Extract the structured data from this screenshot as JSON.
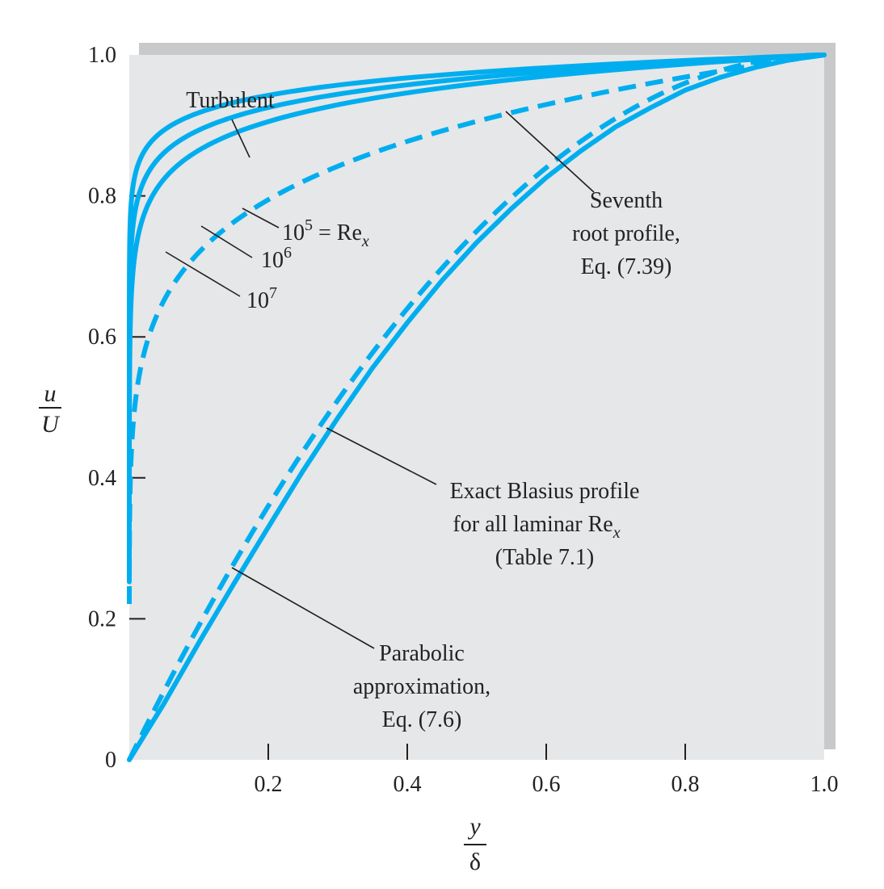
{
  "chart_data": {
    "type": "line",
    "x_axis": {
      "label_numerator": "y",
      "label_denominator": "δ",
      "range": [
        0,
        1.0
      ],
      "ticks": [
        0.2,
        0.4,
        0.6,
        0.8,
        1.0
      ],
      "tick_labels": [
        "0.2",
        "0.4",
        "0.6",
        "0.8",
        "1.0"
      ]
    },
    "y_axis": {
      "label_numerator": "u",
      "label_denominator": "U",
      "range": [
        0,
        1.0
      ],
      "ticks": [
        0,
        0.2,
        0.4,
        0.6,
        0.8,
        1.0
      ],
      "tick_labels": [
        "0",
        "0.2",
        "0.4",
        "0.6",
        "0.8",
        "1.0"
      ]
    },
    "grid": false,
    "colors": {
      "curve": "#00AEEF",
      "background_panel": "#E6E7E8",
      "panel_shadow": "#C8C9CB",
      "leader": "#231F20"
    },
    "series": [
      {
        "id": "turbulent-re-1e7",
        "style": "solid",
        "kind": "turbulent_log",
        "param": 0.0146
      },
      {
        "id": "turbulent-re-1e6",
        "style": "solid",
        "kind": "turbulent_log",
        "param": 0.019
      },
      {
        "id": "turbulent-re-1e5",
        "style": "solid",
        "kind": "turbulent_log",
        "param": 0.0241
      },
      {
        "id": "seventh-root",
        "style": "dashed",
        "kind": "seventh_root"
      },
      {
        "id": "parabolic-approximation",
        "style": "dashed",
        "kind": "parabolic"
      },
      {
        "id": "exact-blasius",
        "style": "solid",
        "kind": "blasius",
        "x": [
          0,
          0.05,
          0.1,
          0.15,
          0.2,
          0.25,
          0.3,
          0.35,
          0.4,
          0.45,
          0.5,
          0.55,
          0.6,
          0.65,
          0.7,
          0.75,
          0.8,
          0.85,
          0.9,
          0.95,
          1.0
        ],
        "y": [
          0,
          0.08,
          0.166,
          0.249,
          0.33,
          0.41,
          0.485,
          0.556,
          0.62,
          0.68,
          0.734,
          0.782,
          0.826,
          0.864,
          0.898,
          0.925,
          0.95,
          0.968,
          0.982,
          0.993,
          1.0
        ]
      }
    ],
    "annotations": {
      "turbulent": "Turbulent",
      "re_1e5_base": "10",
      "re_1e5_exp": "5",
      "re_1e5_suffix": " = Re",
      "re_1e5_sub": "x",
      "re_1e6_base": "10",
      "re_1e6_exp": "6",
      "re_1e7_base": "10",
      "re_1e7_exp": "7",
      "seventh_root_line1": "Seventh",
      "seventh_root_line2": "root profile,",
      "seventh_root_line3": "Eq. (7.39)",
      "blasius_line1": "Exact Blasius profile",
      "blasius_line2": "for all laminar Re",
      "blasius_line2_sub": "x",
      "blasius_line3": "(Table 7.1)",
      "parabolic_line1": "Parabolic",
      "parabolic_line2": "approximation,",
      "parabolic_line3": "Eq. (7.6)"
    }
  }
}
